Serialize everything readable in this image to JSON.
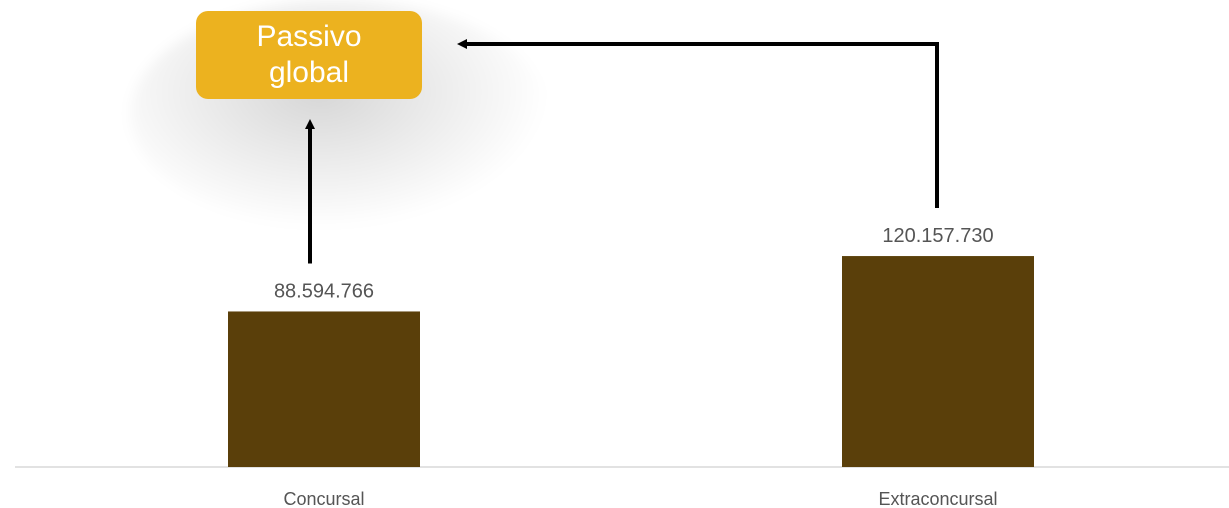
{
  "chart_data": {
    "type": "bar",
    "categories": [
      "Concursal",
      "Extraconcursal"
    ],
    "values": [
      88594766,
      120157730
    ],
    "value_labels": [
      "88.594.766",
      "120.157.730"
    ],
    "ylim": [
      0,
      135000000
    ],
    "grid": false,
    "bar_color": "#5a3f0a",
    "annotation": {
      "text": "Passivo global",
      "color": "#ecb21f",
      "arrows_from": [
        "Concursal",
        "Extraconcursal"
      ]
    }
  }
}
